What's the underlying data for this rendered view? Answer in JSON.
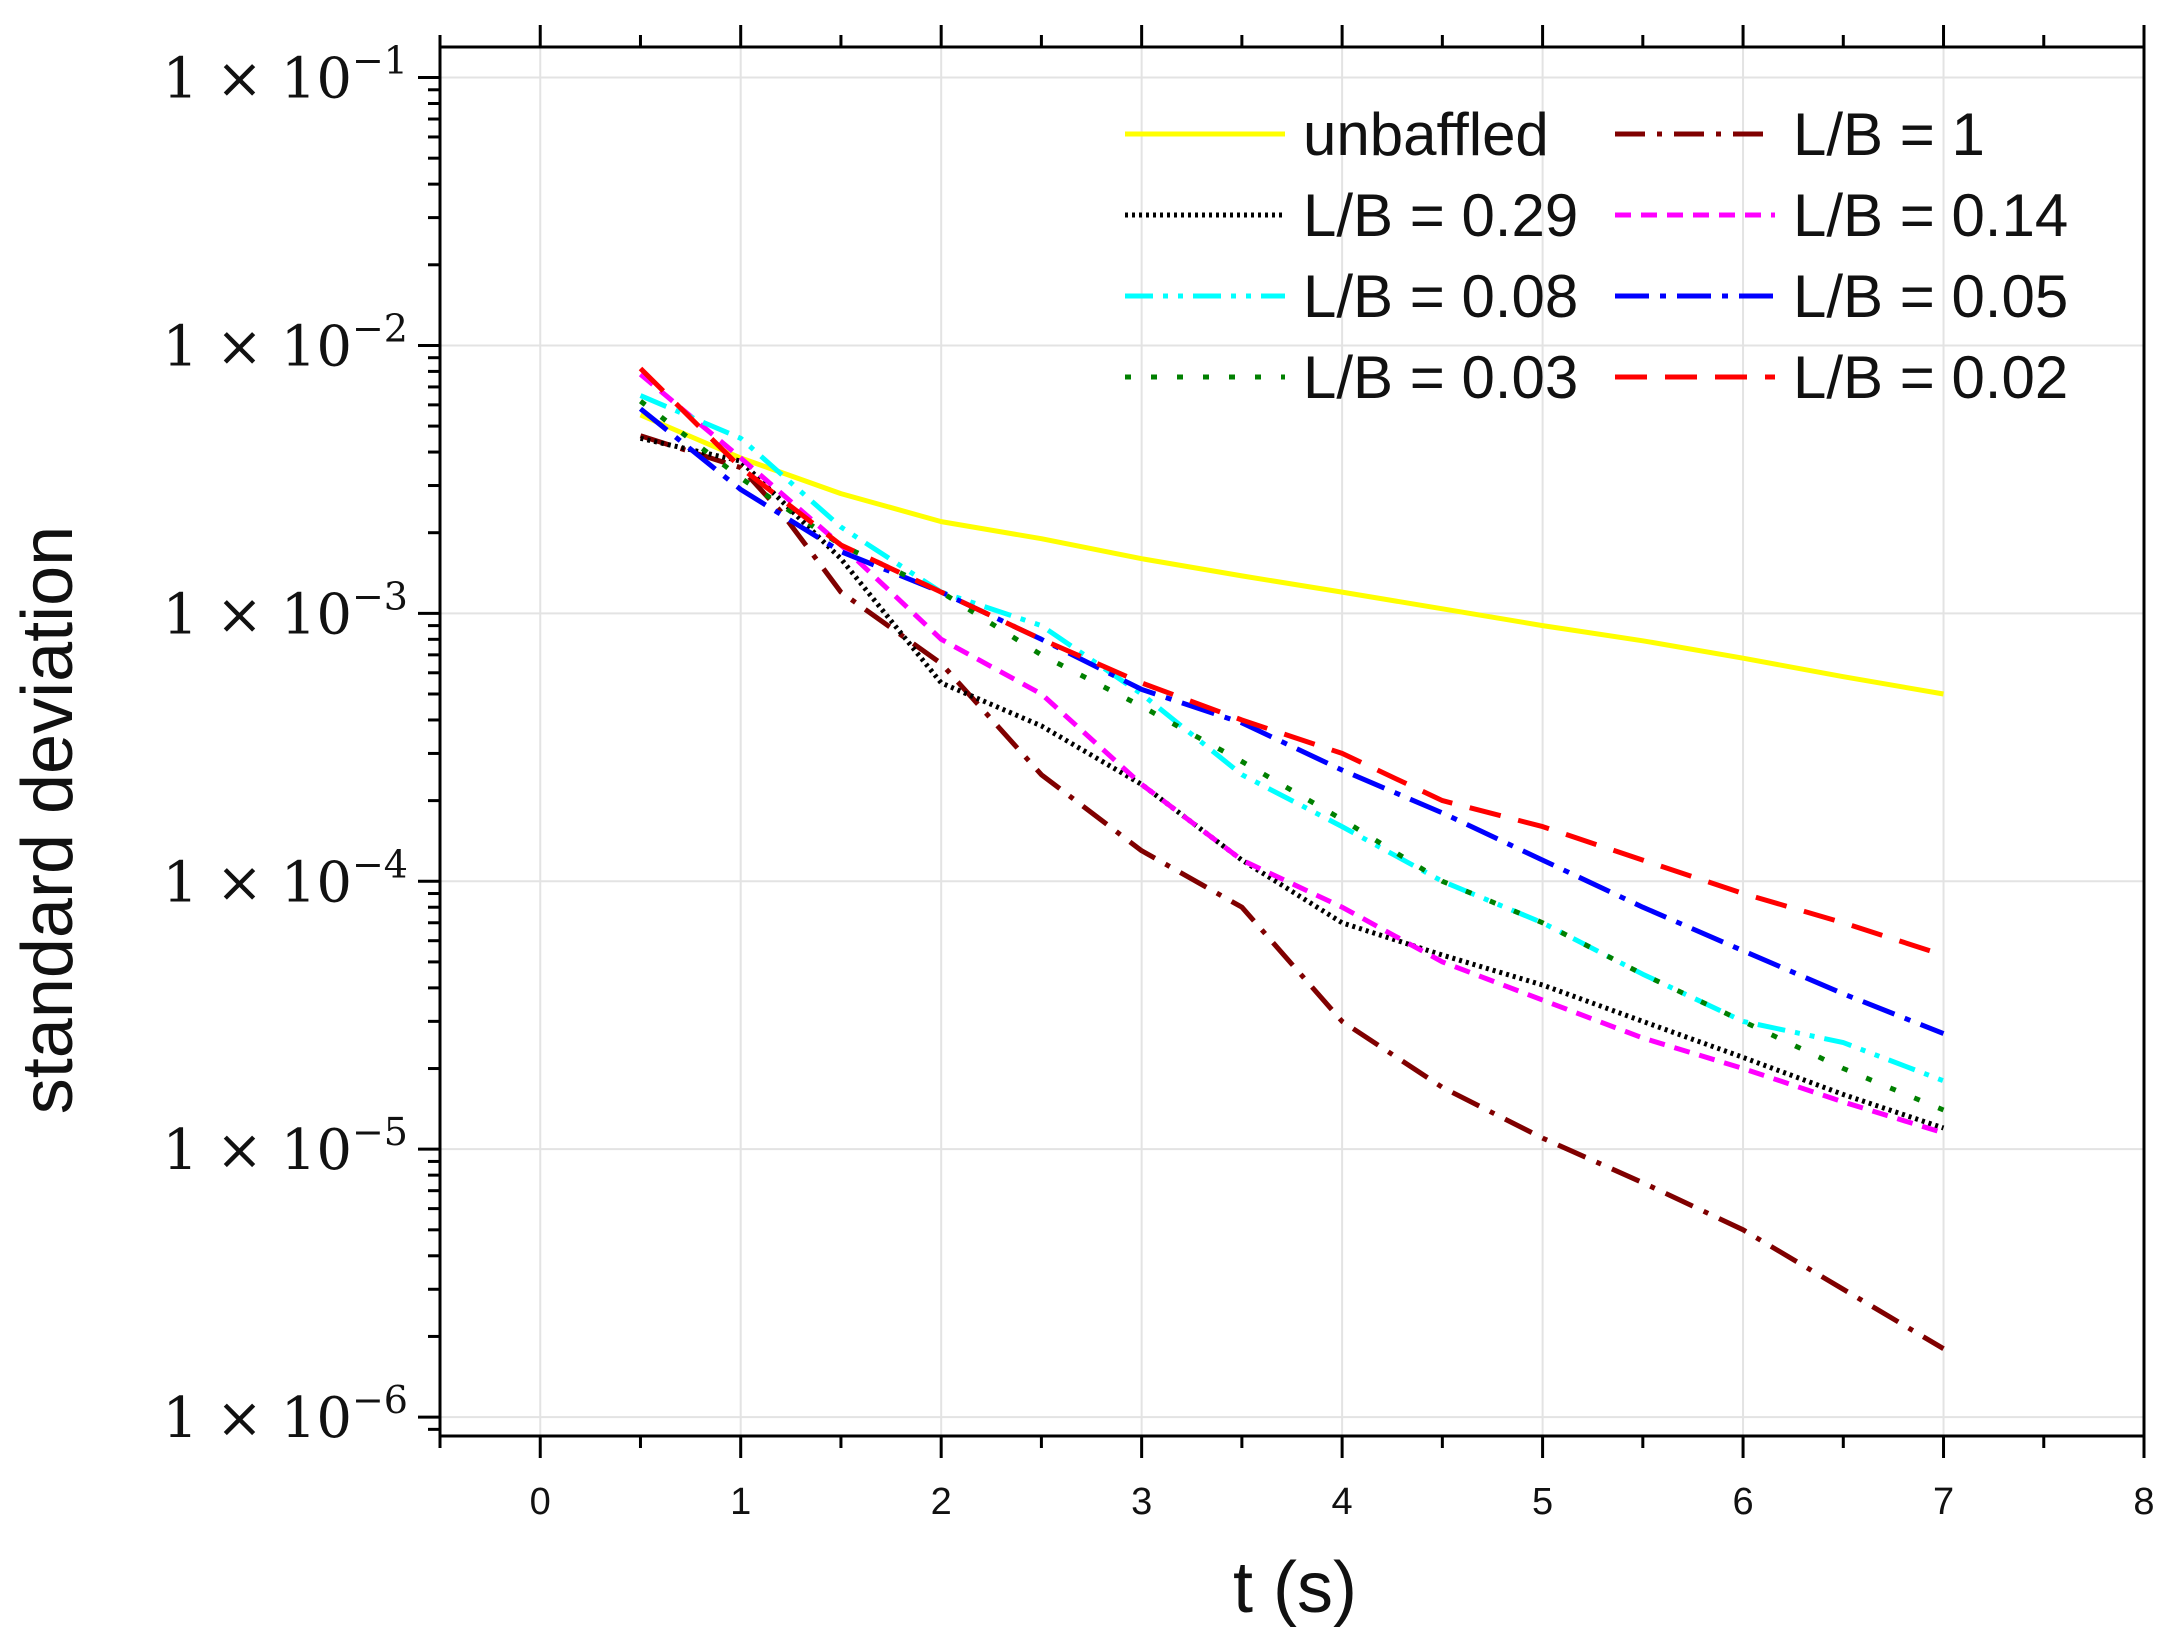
{
  "chart_data": {
    "type": "line",
    "title": "",
    "xlabel": "t (s)",
    "ylabel": "standard deviation",
    "xscale": "linear",
    "yscale": "log",
    "xlim": [
      -0.5,
      8
    ],
    "ylim": [
      8.5e-07,
      0.13
    ],
    "grid": true,
    "legend_position": "top-right",
    "legend_columns": 2,
    "xticks": [
      0,
      1,
      2,
      3,
      4,
      5,
      6,
      7,
      8
    ],
    "xtick_labels": [
      "0",
      "1",
      "2",
      "3",
      "4",
      "5",
      "6",
      "7",
      "8"
    ],
    "yticks": [
      1e-06,
      1e-05,
      0.0001,
      0.001,
      0.01,
      0.1
    ],
    "ytick_labels": [
      {
        "base": "1 × 10",
        "exp": "−6"
      },
      {
        "base": "1 × 10",
        "exp": "−5"
      },
      {
        "base": "1 × 10",
        "exp": "−4"
      },
      {
        "base": "1 × 10",
        "exp": "−3"
      },
      {
        "base": "1 × 10",
        "exp": "−2"
      },
      {
        "base": "1 × 10",
        "exp": "−1"
      }
    ],
    "series": [
      {
        "name": "unbaffled",
        "color": "#ffff00",
        "dash": "solid",
        "x": [
          0.5,
          1.0,
          1.5,
          2.0,
          2.5,
          3.0,
          3.5,
          4.0,
          4.5,
          5.0,
          5.5,
          6.0,
          6.5,
          7.0
        ],
        "y": [
          0.0055,
          0.0038,
          0.0028,
          0.0022,
          0.0019,
          0.0016,
          0.00138,
          0.0012,
          0.00104,
          0.0009,
          0.00079,
          0.00068,
          0.00058,
          0.0005
        ]
      },
      {
        "name": "L/B = 1",
        "color": "#800000",
        "dash": "dashdot",
        "x": [
          0.5,
          1.0,
          1.2,
          1.5,
          2.0,
          2.5,
          3.0,
          3.5,
          4.0,
          4.5,
          5.0,
          5.5,
          6.0,
          6.5,
          7.0
        ],
        "y": [
          0.0046,
          0.0035,
          0.0024,
          0.0012,
          0.00065,
          0.00025,
          0.00013,
          8e-05,
          3e-05,
          1.7e-05,
          1.1e-05,
          7.5e-06,
          5e-06,
          3e-06,
          1.8e-06
        ]
      },
      {
        "name": "L/B = 0.29",
        "color": "#000000",
        "dash": "dot-fine",
        "x": [
          0.5,
          1.0,
          1.5,
          2.0,
          2.5,
          3.0,
          3.5,
          4.0,
          4.5,
          5.0,
          5.5,
          6.0,
          6.5,
          7.0
        ],
        "y": [
          0.0045,
          0.0037,
          0.0016,
          0.00055,
          0.00038,
          0.00023,
          0.00012,
          7e-05,
          5.3e-05,
          4.1e-05,
          3e-05,
          2.2e-05,
          1.6e-05,
          1.2e-05
        ]
      },
      {
        "name": "L/B = 0.14",
        "color": "#ff00ff",
        "dash": "short-dash",
        "x": [
          0.5,
          1.0,
          1.5,
          2.0,
          2.5,
          3.0,
          3.5,
          4.0,
          4.5,
          5.0,
          5.5,
          6.0,
          6.5,
          7.0
        ],
        "y": [
          0.0078,
          0.0038,
          0.0018,
          0.0008,
          0.0005,
          0.00023,
          0.00012,
          8e-05,
          5e-05,
          3.6e-05,
          2.6e-05,
          2e-05,
          1.5e-05,
          1.15e-05
        ]
      },
      {
        "name": "L/B = 0.08",
        "color": "#00ffff",
        "dash": "dash-dot-dot",
        "x": [
          0.5,
          1.0,
          1.5,
          2.0,
          2.5,
          3.0,
          3.5,
          4.0,
          4.5,
          5.0,
          5.5,
          6.0,
          6.5,
          7.0
        ],
        "y": [
          0.0065,
          0.0045,
          0.0021,
          0.0012,
          0.0009,
          0.0005,
          0.00025,
          0.00016,
          0.0001,
          7e-05,
          4.5e-05,
          3e-05,
          2.5e-05,
          1.8e-05
        ]
      },
      {
        "name": "L/B = 0.05",
        "color": "#0000ff",
        "dash": "dash-dot",
        "x": [
          0.5,
          1.0,
          1.5,
          2.0,
          2.5,
          3.0,
          3.5,
          4.0,
          4.5,
          5.0,
          5.5,
          6.0,
          6.5,
          7.0
        ],
        "y": [
          0.0058,
          0.0029,
          0.0017,
          0.0012,
          0.0008,
          0.00052,
          0.00039,
          0.00026,
          0.00018,
          0.00012,
          8e-05,
          5.5e-05,
          3.8e-05,
          2.7e-05
        ]
      },
      {
        "name": "L/B = 0.03",
        "color": "#008000",
        "dash": "dot-wide",
        "x": [
          0.5,
          1.0,
          1.5,
          2.0,
          2.5,
          3.0,
          3.5,
          4.0,
          4.5,
          5.0,
          5.5,
          6.0,
          6.5,
          7.0
        ],
        "y": [
          0.0062,
          0.0032,
          0.0018,
          0.0012,
          0.0007,
          0.00045,
          0.00028,
          0.00017,
          0.0001,
          7e-05,
          4.5e-05,
          3e-05,
          2e-05,
          1.4e-05
        ]
      },
      {
        "name": "L/B = 0.02",
        "color": "#ff0000",
        "dash": "long-dash",
        "x": [
          0.5,
          1.0,
          1.5,
          2.0,
          2.5,
          3.0,
          3.5,
          4.0,
          4.5,
          5.0,
          5.5,
          6.0,
          6.5,
          7.0
        ],
        "y": [
          0.0082,
          0.0035,
          0.0018,
          0.0012,
          0.0008,
          0.00055,
          0.0004,
          0.0003,
          0.0002,
          0.00016,
          0.00012,
          9e-05,
          7e-05,
          5.3e-05
        ]
      }
    ]
  }
}
